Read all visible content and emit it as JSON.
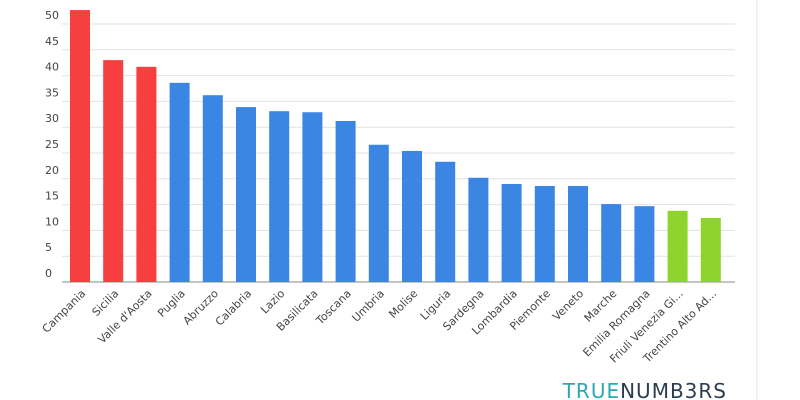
{
  "chart_data": {
    "type": "bar",
    "categories": [
      "Campania",
      "Sicilia",
      "Valle d'Aosta",
      "Puglia",
      "Abruzzo",
      "Calabria",
      "Lazio",
      "Basilicata",
      "Toscana",
      "Umbria",
      "Molise",
      "Liguria",
      "Sardegna",
      "Lombardia",
      "Piemonte",
      "Veneto",
      "Marche",
      "Emilia Romagna",
      "Friuli Venezia Gi...",
      "Trentino Alto Ad..."
    ],
    "values": [
      52.7,
      43.0,
      41.7,
      38.6,
      36.2,
      33.9,
      33.1,
      32.9,
      31.2,
      26.6,
      25.4,
      23.3,
      20.2,
      19.0,
      18.6,
      18.6,
      15.1,
      14.7,
      13.8,
      12.4
    ],
    "colors": [
      "#f73f3f",
      "#f73f3f",
      "#f73f3f",
      "#3b86e3",
      "#3b86e3",
      "#3b86e3",
      "#3b86e3",
      "#3b86e3",
      "#3b86e3",
      "#3b86e3",
      "#3b86e3",
      "#3b86e3",
      "#3b86e3",
      "#3b86e3",
      "#3b86e3",
      "#3b86e3",
      "#3b86e3",
      "#3b86e3",
      "#8fd42c",
      "#8fd42c"
    ],
    "ylim": [
      0,
      55
    ],
    "yticks": [
      0,
      5,
      10,
      15,
      20,
      25,
      30,
      35,
      40,
      45,
      50
    ],
    "grid": true
  },
  "logo": {
    "text_a": "TRUE",
    "text_b": "NUMB3RS"
  }
}
